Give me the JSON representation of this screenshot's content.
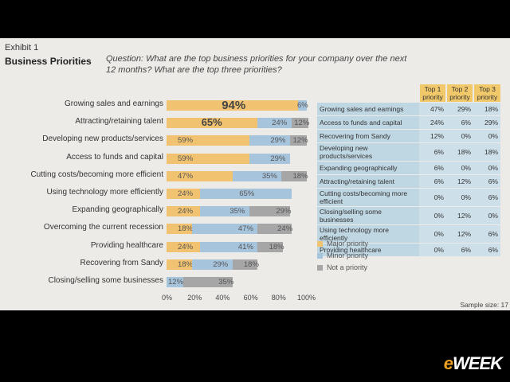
{
  "header": {
    "exhibit": "Exhibit 1",
    "title": "Business Priorities",
    "question": "Question: What are the top business priorities for your company over the next 12 months? What are the top three priorities?"
  },
  "colors": {
    "major": "#f1c370",
    "minor": "#a7c4dd",
    "not": "#a6a6a6"
  },
  "chart_data": {
    "type": "bar",
    "orientation": "horizontal",
    "stacked": true,
    "categories": [
      "Growing sales and earnings",
      "Attracting/retaining talent",
      "Developing new products/services",
      "Access to funds and capital",
      "Cutting costs/becoming more efficient",
      "Using technology more efficiently",
      "Expanding geographically",
      "Overcoming the current recession",
      "Providing healthcare",
      "Recovering from Sandy",
      "Closing/selling some businesses"
    ],
    "series": [
      {
        "name": "Major priority",
        "values": [
          94,
          65,
          59,
          59,
          47,
          24,
          24,
          18,
          24,
          18,
          0
        ]
      },
      {
        "name": "Minor priority",
        "values": [
          6,
          24,
          29,
          29,
          35,
          65,
          35,
          47,
          41,
          29,
          12
        ]
      },
      {
        "name": "Not a priority",
        "values": [
          0,
          12,
          12,
          0,
          18,
          0,
          29,
          24,
          18,
          18,
          35
        ]
      }
    ],
    "labels": [
      [
        "94%",
        "6%",
        ""
      ],
      [
        "65%",
        "24%",
        "12%"
      ],
      [
        "59%",
        "29%",
        "12%"
      ],
      [
        "59%",
        "29%",
        ""
      ],
      [
        "47%",
        "35%",
        "18%"
      ],
      [
        "24%",
        "65%",
        ""
      ],
      [
        "24%",
        "35%",
        "29%"
      ],
      [
        "18%",
        "47%",
        "24%"
      ],
      [
        "24%",
        "41%",
        "18%"
      ],
      [
        "18%",
        "29%",
        "18%"
      ],
      [
        "",
        "12%",
        "35%"
      ]
    ],
    "xlim": [
      0,
      100
    ],
    "xticks": [
      "0%",
      "20%",
      "40%",
      "60%",
      "80%",
      "100%"
    ]
  },
  "legend": [
    "Major priority",
    "Minor priority",
    "Not a priority"
  ],
  "table": {
    "headers": [
      "Top 1 priority",
      "Top 2 priority",
      "Top 3 priority"
    ],
    "rows": [
      {
        "name": "Growing sales and earnings",
        "v": [
          "47%",
          "29%",
          "18%"
        ]
      },
      {
        "name": "Access to funds and capital",
        "v": [
          "24%",
          "6%",
          "29%"
        ]
      },
      {
        "name": "Recovering from Sandy",
        "v": [
          "12%",
          "0%",
          "0%"
        ]
      },
      {
        "name": "Developing new products/services",
        "v": [
          "6%",
          "18%",
          "18%"
        ]
      },
      {
        "name": "Expanding geographically",
        "v": [
          "6%",
          "0%",
          "0%"
        ]
      },
      {
        "name": "Attracting/retaining talent",
        "v": [
          "6%",
          "12%",
          "6%"
        ]
      },
      {
        "name": "Cutting costs/becoming more efficient",
        "v": [
          "0%",
          "0%",
          "6%"
        ]
      },
      {
        "name": "Closing/selling some businesses",
        "v": [
          "0%",
          "12%",
          "0%"
        ]
      },
      {
        "name": "Using technology more efficiently",
        "v": [
          "0%",
          "12%",
          "6%"
        ]
      },
      {
        "name": "Providing healthcare",
        "v": [
          "0%",
          "6%",
          "6%"
        ]
      }
    ]
  },
  "sample": "Sample size: 17",
  "watermark": "eWEEK"
}
